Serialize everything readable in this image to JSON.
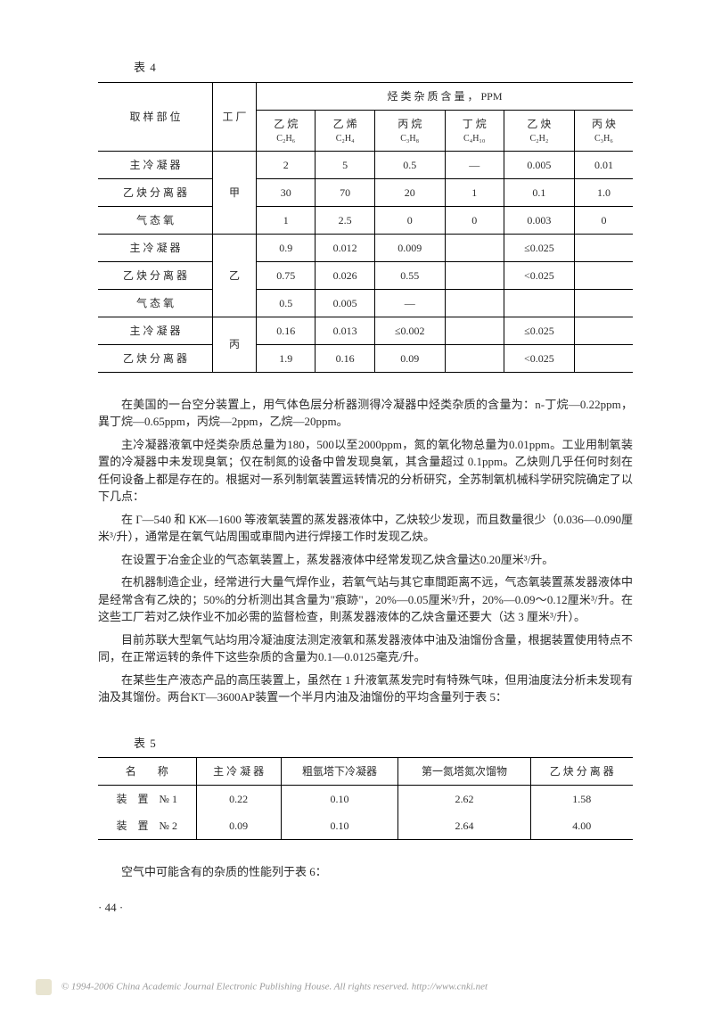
{
  "table4": {
    "label": "表 4",
    "header_col1": "取 样 部 位",
    "header_col2": "工 厂",
    "header_group": "烃 类 杂 质 含 量 ， PPM",
    "cols": [
      {
        "n": "乙 烷",
        "f": "C₂H₆"
      },
      {
        "n": "乙 烯",
        "f": "C₂H₄"
      },
      {
        "n": "丙 烷",
        "f": "C₃H₈"
      },
      {
        "n": "丁 烷",
        "f": "C₄H₁₀"
      },
      {
        "n": "乙 炔",
        "f": "C₂H₂"
      },
      {
        "n": "丙 炔",
        "f": "C₃H₆"
      }
    ],
    "groups": [
      {
        "factory": "甲",
        "rows": [
          {
            "label": "主 冷 凝 器",
            "v": [
              "2",
              "5",
              "0.5",
              "—",
              "0.005",
              "0.01"
            ]
          },
          {
            "label": "乙 炔 分 离 器",
            "v": [
              "30",
              "70",
              "20",
              "1",
              "0.1",
              "1.0"
            ]
          },
          {
            "label": "气 态 氧",
            "v": [
              "1",
              "2.5",
              "0",
              "0",
              "0.003",
              "0"
            ]
          }
        ]
      },
      {
        "factory": "乙",
        "rows": [
          {
            "label": "主 冷 凝 器",
            "v": [
              "0.9",
              "0.012",
              "0.009",
              "",
              "≤0.025",
              ""
            ]
          },
          {
            "label": "乙 炔 分 离 器",
            "v": [
              "0.75",
              "0.026",
              "0.55",
              "",
              "<0.025",
              ""
            ]
          },
          {
            "label": "气 态 氧",
            "v": [
              "0.5",
              "0.005",
              "—",
              "",
              "",
              ""
            ]
          }
        ]
      },
      {
        "factory": "丙",
        "rows": [
          {
            "label": "主 冷 凝 器",
            "v": [
              "0.16",
              "0.013",
              "≤0.002",
              "",
              "≤0.025",
              ""
            ]
          },
          {
            "label": "乙 炔 分 离 器",
            "v": [
              "1.9",
              "0.16",
              "0.09",
              "",
              "<0.025",
              ""
            ]
          }
        ]
      }
    ]
  },
  "paragraphs": [
    "在美国的一台空分装置上，用气体色层分析器测得冷凝器中烃类杂质的含量为：n-丁烷—0.22ppm，異丁烷—0.65ppm，丙烷—2ppm，乙烷—20ppm。",
    "主冷凝器液氧中烃类杂质总量为180，500以至2000ppm，氮的氧化物总量为0.01ppm。工业用制氧装置的冷凝器中未发现臭氧；仅在制氮的设备中曾发现臭氧，其含量超过 0.1ppm。乙炔则几乎任何时刻在任何设备上都是存在的。根据对一系列制氧装置运转情况的分析研究，全苏制氧机械科学研究院确定了以下几点：",
    "在 Г—540 和 КЖ—1600 等液氧装置的蒸发器液体中，乙炔较少发现，而且数量很少（0.036—0.090厘米³/升），通常是在氧气站周围或車間內进行焊接工作时发现乙炔。",
    "在设置于冶金企业的气态氧装置上，蒸发器液体中经常发现乙炔含量达0.20厘米³/升。",
    "在机器制造企业，经常进行大量气焊作业，若氧气站与其它車間距离不远，气态氧装置蒸发器液体中是经常含有乙炔的；50%的分析测出其含量为\"痕跡\"，20%—0.05厘米³/升，20%—0.09～0.12厘米³/升。在这些工厂若对乙炔作业不加必需的监督检查，則蒸发器液体的乙炔含量还要大（达 3 厘米³/升）。",
    "目前苏联大型氧气站均用冷凝油度法测定液氧和蒸发器液体中油及油馏份含量，根据装置使用特点不同，在正常运转的条件下这些杂质的含量为0.1—0.0125毫克/升。",
    "在某些生产液态产品的高压装置上，虽然在 1 升液氧蒸发完时有特殊气味，但用油度法分析未发现有油及其馏份。两台КТ—3600АР装置一个半月内油及油馏份的平均含量列于表 5："
  ],
  "table5": {
    "label": "表 5",
    "headers": [
      "名　　称",
      "主 冷 凝 器",
      "粗氩塔下冷凝器",
      "第一氮塔氮次馏物",
      "乙 炔 分 离 器"
    ],
    "rows": [
      {
        "name": "装　置　№ 1",
        "v": [
          "0.22",
          "0.10",
          "2.62",
          "1.58"
        ]
      },
      {
        "name": "装　置　№ 2",
        "v": [
          "0.09",
          "0.10",
          "2.64",
          "4.00"
        ]
      }
    ]
  },
  "tail_para": "空气中可能含有的杂质的性能列于表 6：",
  "page_num": "· 44 ·",
  "footer": "© 1994-2006 China Academic Journal Electronic Publishing House. All rights reserved.   http://www.cnki.net"
}
